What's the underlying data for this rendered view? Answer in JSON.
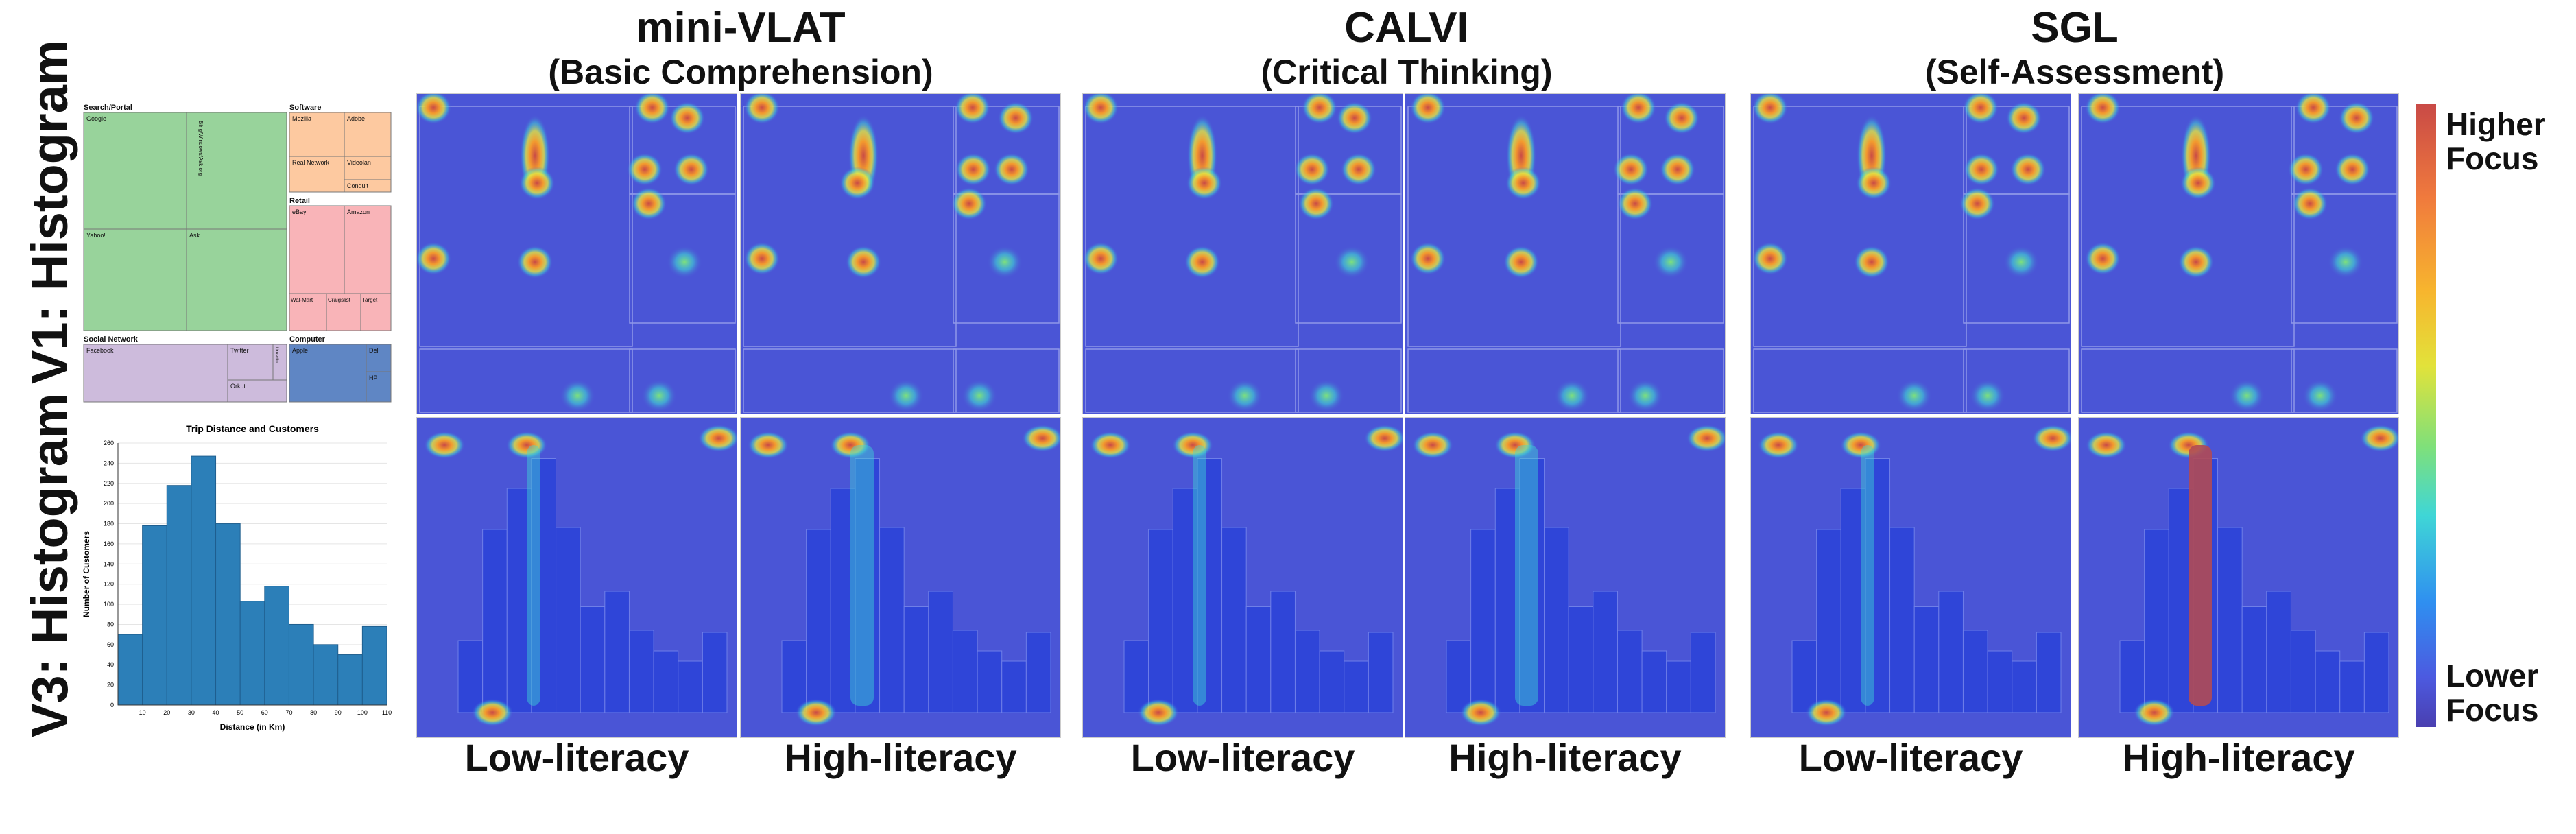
{
  "row_labels": {
    "top": "V1: Histogram",
    "bottom": "V3: Histogram"
  },
  "columns": [
    {
      "title": "mini-VLAT",
      "subtitle": "(Basic Comprehension)"
    },
    {
      "title": "CALVI",
      "subtitle": "(Critical Thinking)"
    },
    {
      "title": "SGL",
      "subtitle": "(Self-Assessment)"
    }
  ],
  "literacy_labels": {
    "low": "Low-literacy",
    "high": "High-literacy"
  },
  "colorbar": {
    "high": "Higher Focus",
    "low": "Lower Focus"
  },
  "colors": {
    "heat_bg": "#4a55d6",
    "bar_fill": "#2c7fb8",
    "treemap_green": "#98d39b",
    "treemap_orange": "#fdc9a0",
    "treemap_red": "#f9b4b8",
    "treemap_purple": "#cdbbdc",
    "treemap_blue": "#5f86c4"
  },
  "treemap": {
    "groups": [
      {
        "name": "Search/Portal",
        "items": [
          "Google",
          "Yahoo!",
          "Ask",
          "Bing/Windows/Ask.org"
        ]
      },
      {
        "name": "Software",
        "items": [
          "Mozilla",
          "Adobe",
          "Real Network",
          "Videolan",
          "Conduit"
        ]
      },
      {
        "name": "Retail",
        "items": [
          "eBay",
          "Amazon",
          "Wal-Mart",
          "Craigslist",
          "Target"
        ]
      },
      {
        "name": "Social Network",
        "items": [
          "Facebook",
          "Twitter",
          "LinkedIn",
          "Orkut"
        ]
      },
      {
        "name": "Computer",
        "items": [
          "Apple",
          "Dell",
          "HP"
        ]
      }
    ]
  },
  "chart_data": {
    "type": "bar",
    "title": "Trip Distance and Customers",
    "xlabel": "Distance (in Km)",
    "ylabel": "Number of Customers",
    "categories": [
      "0-10",
      "10-20",
      "20-30",
      "30-40",
      "40-50",
      "50-60",
      "60-70",
      "70-80",
      "80-90",
      "90-100",
      "100-110"
    ],
    "bin_edges": [
      0,
      10,
      20,
      30,
      40,
      50,
      60,
      70,
      80,
      90,
      100,
      110
    ],
    "values": [
      70,
      178,
      218,
      247,
      180,
      103,
      118,
      80,
      60,
      50,
      78
    ],
    "xticks": [
      10,
      20,
      30,
      40,
      50,
      60,
      70,
      80,
      90,
      100,
      110
    ],
    "yticks": [
      0,
      20,
      40,
      60,
      80,
      100,
      120,
      140,
      160,
      180,
      200,
      220,
      240,
      260
    ],
    "ylim": [
      0,
      260
    ],
    "xlim": [
      0,
      110
    ]
  }
}
